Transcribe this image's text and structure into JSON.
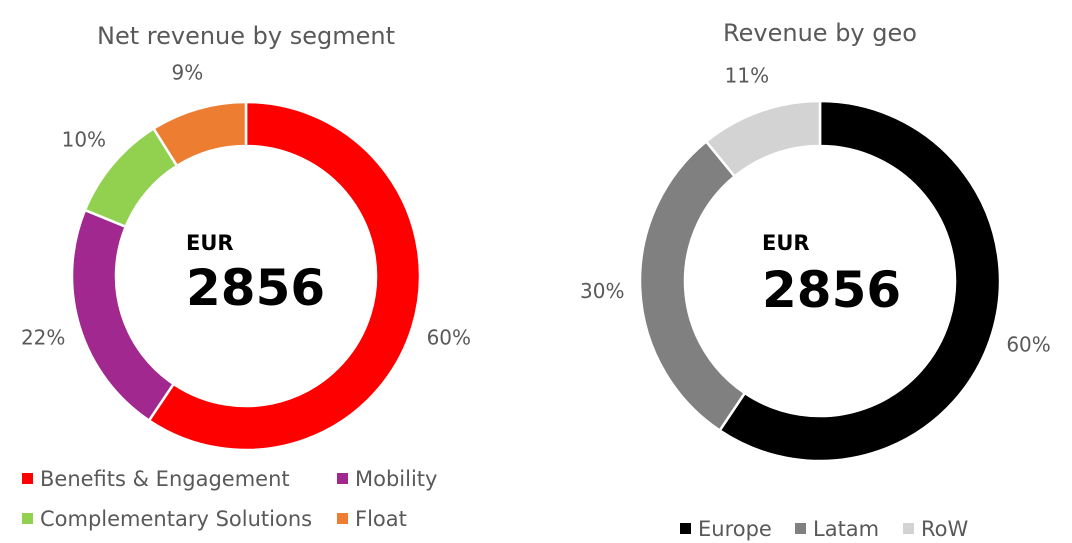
{
  "chart_data": [
    {
      "type": "pie",
      "title": "Net revenue by segment",
      "center_currency": "EUR",
      "center_value": "2856",
      "categories": [
        "Benefits & Engagement",
        "Mobility",
        "Complementary Solutions",
        "Float"
      ],
      "values": [
        60,
        22,
        10,
        9
      ],
      "labels": [
        "60%",
        "22%",
        "10%",
        "9%"
      ],
      "colors": [
        "#ff0000",
        "#a0288f",
        "#92d050",
        "#ed7d31"
      ],
      "legend_position": "bottom"
    },
    {
      "type": "pie",
      "title": "Revenue by geo",
      "center_currency": "EUR",
      "center_value": "2856",
      "categories": [
        "Europe",
        "Latam",
        "RoW"
      ],
      "values": [
        60,
        30,
        11
      ],
      "labels": [
        "60%",
        "30%",
        "11%"
      ],
      "colors": [
        "#000000",
        "#808080",
        "#d3d3d3"
      ],
      "legend_position": "bottom"
    }
  ]
}
